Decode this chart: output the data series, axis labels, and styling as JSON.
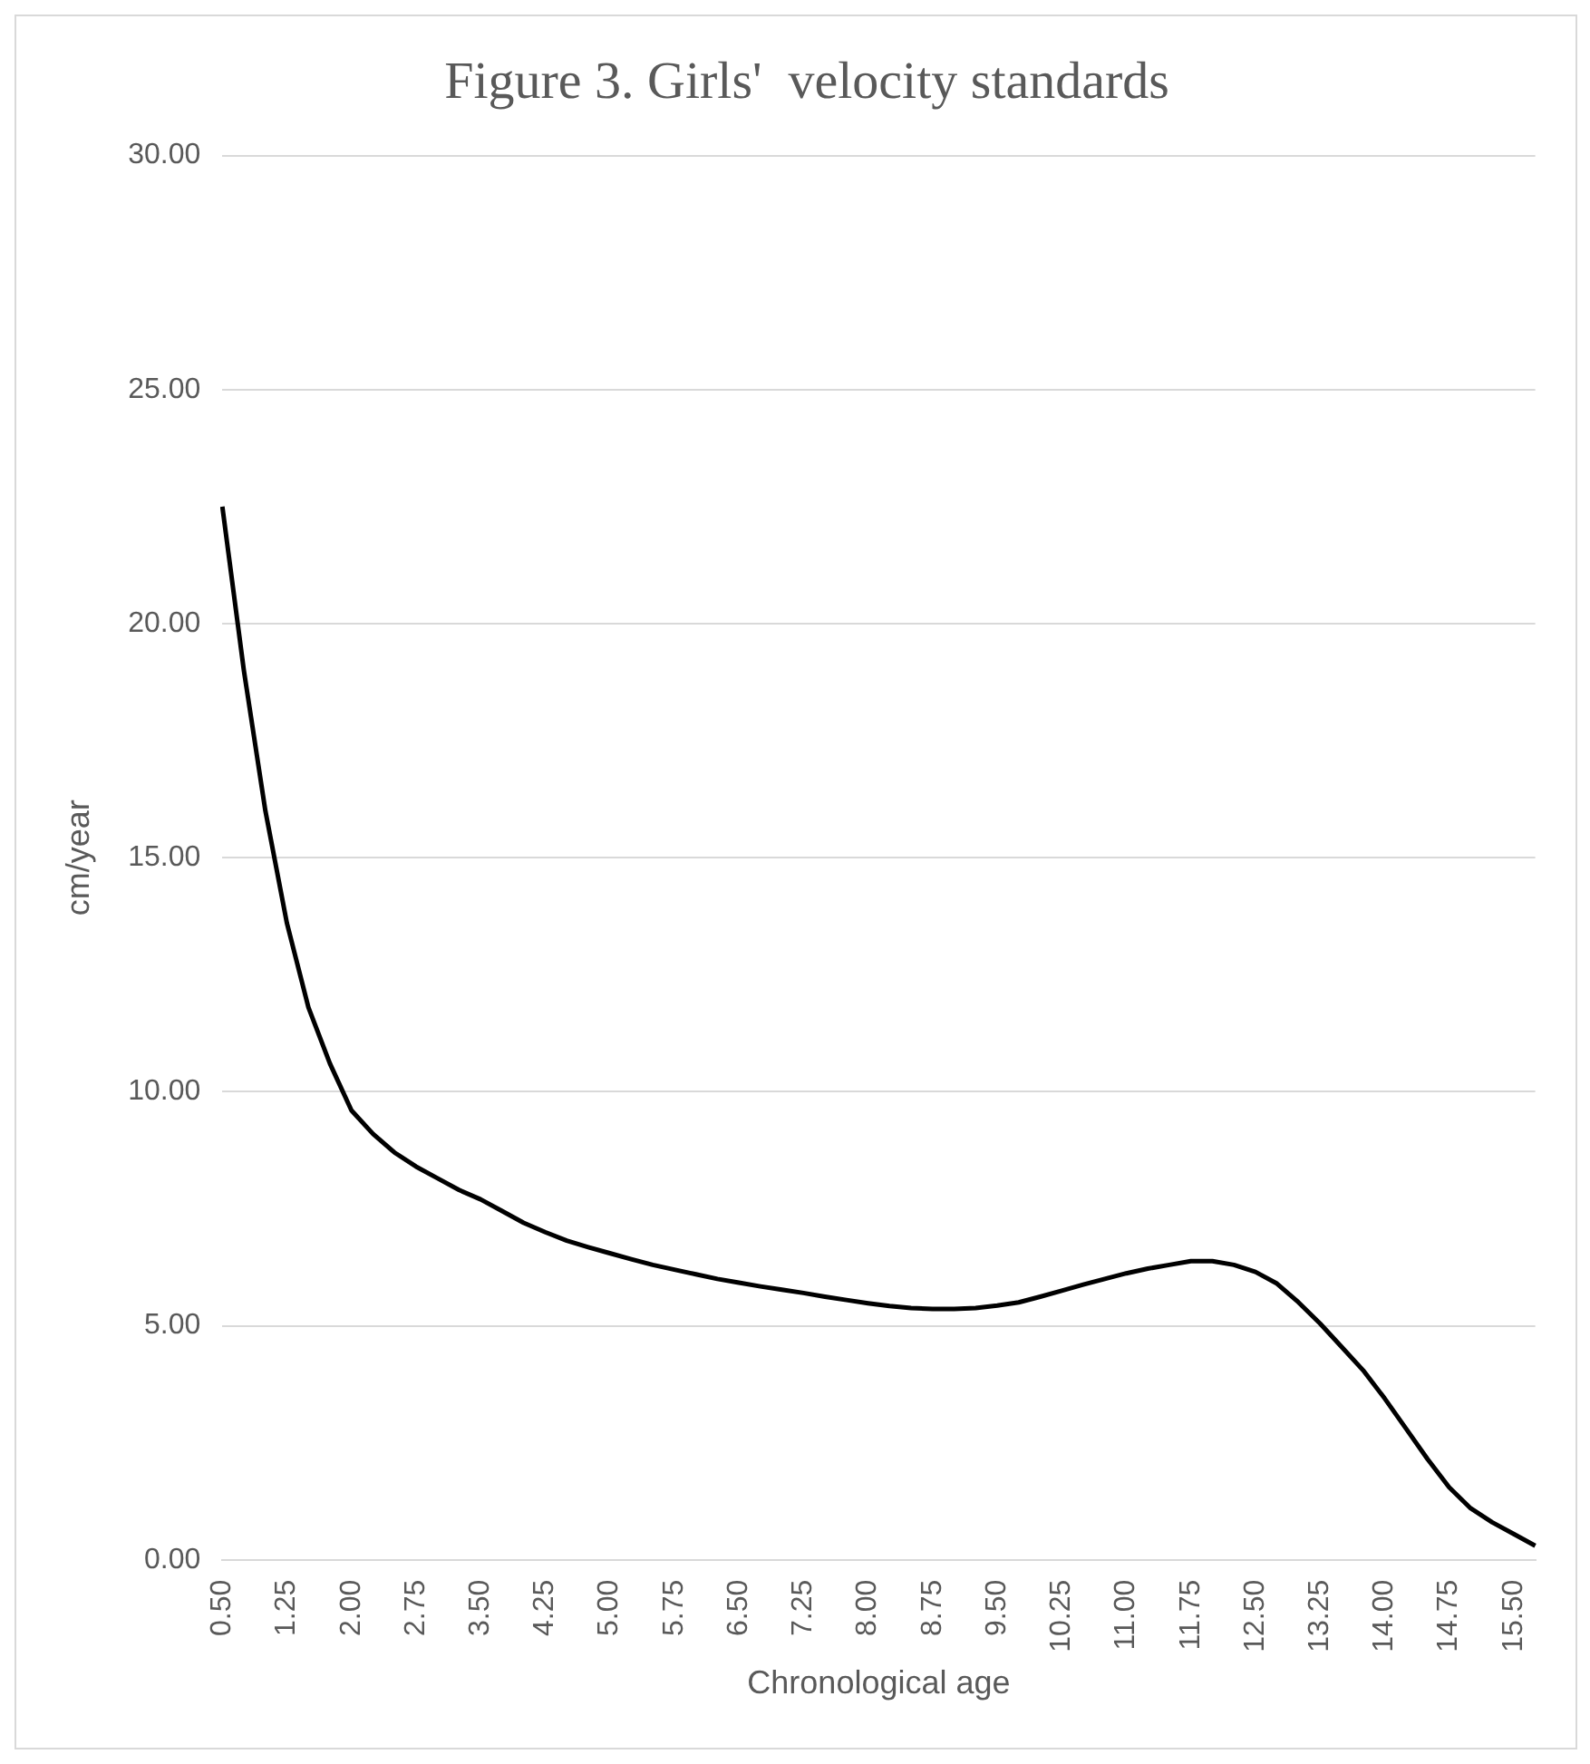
{
  "chart_data": {
    "type": "line",
    "title": "Figure 3. Girls'  velocity standards",
    "xlabel": "Chronological age",
    "ylabel": "cm/year",
    "categories": [
      "0.50",
      null,
      null,
      "1.25",
      null,
      null,
      "2.00",
      null,
      null,
      "2.75",
      null,
      null,
      "3.50",
      null,
      null,
      "4.25",
      null,
      null,
      "5.00",
      null,
      null,
      "5.75",
      null,
      null,
      "6.50",
      null,
      null,
      "7.25",
      null,
      null,
      "8.00",
      null,
      null,
      "8.75",
      null,
      null,
      "9.50",
      null,
      null,
      "10.25",
      null,
      null,
      "11.00",
      null,
      null,
      "11.75",
      null,
      null,
      "12.50",
      null,
      null,
      "13.25",
      null,
      null,
      "14.00",
      null,
      null,
      "14.75",
      null,
      null,
      "15.50",
      null
    ],
    "series": [
      {
        "color": "#000000",
        "values": [
          22.5,
          19.0,
          16.0,
          13.6,
          11.8,
          10.6,
          9.6,
          9.1,
          8.7,
          8.4,
          8.15,
          7.9,
          7.7,
          7.45,
          7.2,
          7.0,
          6.82,
          6.68,
          6.55,
          6.42,
          6.3,
          6.2,
          6.1,
          6.0,
          5.92,
          5.84,
          5.77,
          5.7,
          5.62,
          5.55,
          5.48,
          5.42,
          5.38,
          5.36,
          5.36,
          5.38,
          5.43,
          5.5,
          5.62,
          5.75,
          5.88,
          6.0,
          6.12,
          6.22,
          6.3,
          6.38,
          6.38,
          6.3,
          6.15,
          5.9,
          5.5,
          5.05,
          4.55,
          4.05,
          3.45,
          2.8,
          2.15,
          1.55,
          1.1,
          0.8,
          0.55,
          0.3
        ]
      }
    ],
    "ylim": [
      0,
      30
    ],
    "yticks": [
      {
        "value": 0,
        "label": "0.00"
      },
      {
        "value": 5,
        "label": "5.00"
      },
      {
        "value": 10,
        "label": "10.00"
      },
      {
        "value": 15,
        "label": "15.00"
      },
      {
        "value": 20,
        "label": "20.00"
      },
      {
        "value": 25,
        "label": "25.00"
      },
      {
        "value": 30,
        "label": "30.00"
      }
    ],
    "grid": "y",
    "legend": false,
    "marker": "none",
    "line_style": "solid"
  }
}
